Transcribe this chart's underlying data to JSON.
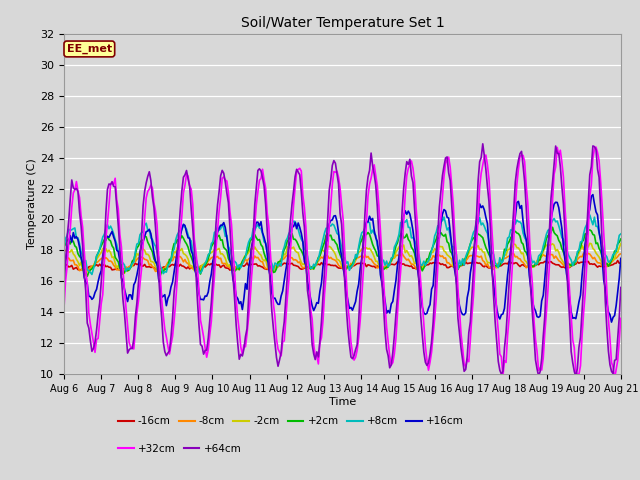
{
  "title": "Soil/Water Temperature Set 1",
  "xlabel": "Time",
  "ylabel": "Temperature (C)",
  "ylim": [
    10,
    32
  ],
  "yticks": [
    10,
    12,
    14,
    16,
    18,
    20,
    22,
    24,
    26,
    28,
    30,
    32
  ],
  "xtick_labels": [
    "Aug 6",
    "Aug 7",
    "Aug 8",
    "Aug 9",
    "Aug 10",
    "Aug 11",
    "Aug 12",
    "Aug 13",
    "Aug 14",
    "Aug 15",
    "Aug 16",
    "Aug 17",
    "Aug 18",
    "Aug 19",
    "Aug 20",
    "Aug 21"
  ],
  "bg_color": "#d8d8d8",
  "plot_bg_color": "#d8d8d8",
  "annotation_text": "EE_met",
  "annotation_bg": "#ffff99",
  "annotation_border": "#800000",
  "series": [
    {
      "label": "-16cm",
      "color": "#cc0000",
      "linewidth": 1.2
    },
    {
      "label": "-8cm",
      "color": "#ff8800",
      "linewidth": 1.2
    },
    {
      "label": "-2cm",
      "color": "#cccc00",
      "linewidth": 1.2
    },
    {
      "label": "+2cm",
      "color": "#00bb00",
      "linewidth": 1.2
    },
    {
      "label": "+8cm",
      "color": "#00bbbb",
      "linewidth": 1.2
    },
    {
      "label": "+16cm",
      "color": "#0000cc",
      "linewidth": 1.2
    },
    {
      "label": "+32cm",
      "color": "#ff00ff",
      "linewidth": 1.2
    },
    {
      "label": "+64cm",
      "color": "#8800bb",
      "linewidth": 1.2
    }
  ],
  "legend_row1": [
    "-16cm",
    "-8cm",
    "-2cm",
    "+2cm",
    "+8cm",
    "+16cm"
  ],
  "legend_row2": [
    "+32cm",
    "+64cm"
  ]
}
